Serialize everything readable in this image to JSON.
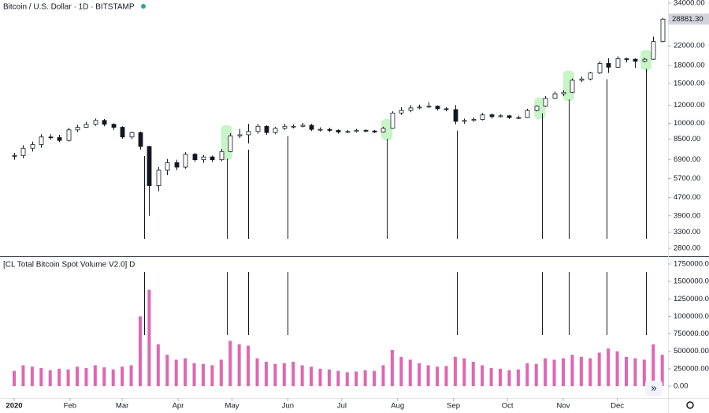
{
  "chart_data": [
    {
      "type": "candlestick",
      "title": "Bitcoin / U.S. Dollar · 1D · BITSTAMP",
      "log_scale": true,
      "up_color": "#ffffff",
      "down_color": "#131722",
      "x": [
        0,
        5,
        10,
        15,
        20,
        25,
        30,
        35,
        40,
        45,
        50,
        55,
        60,
        65,
        70,
        75,
        80,
        85,
        90,
        95,
        100,
        105,
        110,
        115,
        120,
        125,
        130,
        135,
        140,
        145,
        150,
        155,
        160,
        165,
        170,
        175,
        180,
        185,
        190,
        195,
        200,
        205,
        210,
        215,
        220,
        225,
        230,
        235,
        240,
        245,
        250,
        255,
        260,
        265,
        270,
        275,
        280,
        285,
        290,
        295,
        300,
        305,
        310,
        315,
        320,
        325,
        330,
        335,
        340,
        345,
        350,
        355,
        360
      ],
      "open": [
        7150,
        7200,
        7750,
        8050,
        8700,
        8650,
        8400,
        9350,
        9600,
        9900,
        10300,
        9900,
        9600,
        8700,
        9100,
        7900,
        5300,
        6200,
        6700,
        6400,
        7300,
        6900,
        7100,
        6900,
        7500,
        8800,
        8900,
        9200,
        9700,
        9100,
        9500,
        9700,
        9700,
        9800,
        9400,
        9400,
        9300,
        9150,
        9200,
        9300,
        9250,
        9150,
        9500,
        11100,
        11400,
        11700,
        11800,
        11900,
        11600,
        11500,
        10200,
        10300,
        10400,
        10900,
        10700,
        10800,
        10600,
        10600,
        11400,
        11900,
        12900,
        13500,
        13700,
        15500,
        15700,
        16700,
        18400,
        17700,
        19300,
        19200,
        18800,
        19200,
        23000
      ],
      "high": [
        7400,
        8000,
        8300,
        8950,
        8950,
        8900,
        9550,
        9850,
        10150,
        10500,
        10450,
        10000,
        9700,
        9200,
        9200,
        7950,
        6400,
        6950,
        6900,
        7450,
        7400,
        7250,
        7200,
        7700,
        9050,
        9450,
        9950,
        9950,
        9800,
        9650,
        9950,
        9900,
        10050,
        9950,
        9600,
        9550,
        9400,
        9350,
        9450,
        9400,
        9350,
        9650,
        11300,
        11800,
        12050,
        12100,
        12400,
        12000,
        11800,
        12050,
        10500,
        10600,
        11100,
        11050,
        10950,
        10900,
        10800,
        11600,
        12000,
        13200,
        13850,
        14000,
        15800,
        16100,
        16900,
        18800,
        19400,
        19800,
        19500,
        19400,
        19500,
        24200,
        29300
      ],
      "low": [
        6900,
        7000,
        7500,
        7800,
        8450,
        8250,
        8300,
        9150,
        9550,
        9750,
        9700,
        9350,
        8550,
        8500,
        7650,
        3900,
        5000,
        5900,
        6200,
        6300,
        6750,
        6700,
        6750,
        6800,
        7450,
        8600,
        8150,
        9000,
        8900,
        8950,
        9350,
        9500,
        9600,
        9250,
        9200,
        9150,
        9000,
        9050,
        9100,
        9150,
        9050,
        9100,
        9450,
        10900,
        11200,
        11550,
        11700,
        11400,
        11300,
        9900,
        9950,
        10150,
        10300,
        10500,
        10600,
        10450,
        10450,
        10550,
        11300,
        11800,
        12800,
        13200,
        13600,
        15200,
        15500,
        16500,
        16700,
        17600,
        18600,
        17600,
        18600,
        19100,
        22800
      ],
      "close": [
        7200,
        7750,
        8050,
        8700,
        8650,
        8400,
        9350,
        9600,
        9900,
        10300,
        9900,
        9600,
        8700,
        9100,
        7900,
        5300,
        6200,
        6700,
        6400,
        7300,
        6900,
        7100,
        6900,
        7500,
        8800,
        8900,
        9200,
        9700,
        9100,
        9500,
        9700,
        9700,
        9800,
        9400,
        9400,
        9300,
        9150,
        9200,
        9300,
        9250,
        9150,
        9500,
        11100,
        11400,
        11700,
        11800,
        11900,
        11600,
        11500,
        10200,
        10300,
        10400,
        10900,
        10700,
        10800,
        10600,
        10600,
        11400,
        11900,
        12900,
        13500,
        13700,
        15500,
        15700,
        16700,
        18400,
        17700,
        19300,
        19200,
        18800,
        19200,
        23000,
        28881.3
      ],
      "last_label": "28881.30",
      "signals": [
        72,
        118,
        130,
        152,
        207,
        246,
        293,
        308,
        329,
        351
      ],
      "highlights": [
        118,
        207,
        292,
        308,
        351
      ],
      "highlight_color": "#c8f5c8",
      "xlim": [
        -7.88,
        363.2
      ],
      "ylim": [
        2585,
        35100
      ],
      "yticks": [
        {
          "value": 34000,
          "label": "34000.00"
        },
        {
          "value": 28000,
          "label": "28000.00"
        },
        {
          "value": 22000,
          "label": "22000.00"
        },
        {
          "value": 18000,
          "label": "18000.00"
        },
        {
          "value": 15000,
          "label": "15000.00"
        },
        {
          "value": 12000,
          "label": "12000.00"
        },
        {
          "value": 10000,
          "label": "10000.00"
        },
        {
          "value": 8500,
          "label": "8500.00"
        },
        {
          "value": 6900,
          "label": "6900.00"
        },
        {
          "value": 5700,
          "label": "5700.00"
        },
        {
          "value": 4700,
          "label": "4700.00"
        },
        {
          "value": 3900,
          "label": "3900.00"
        },
        {
          "value": 3300,
          "label": "3300.00"
        },
        {
          "value": 2800,
          "label": "2800.00"
        }
      ]
    },
    {
      "type": "bar",
      "title": "[CL Total Bitcoin Spot Volume V2.0] D",
      "color": "#e066b3",
      "x": [
        0,
        5,
        10,
        15,
        20,
        25,
        30,
        35,
        40,
        45,
        50,
        55,
        60,
        65,
        70,
        75,
        80,
        85,
        90,
        95,
        100,
        105,
        110,
        115,
        120,
        125,
        130,
        135,
        140,
        145,
        150,
        155,
        160,
        165,
        170,
        175,
        180,
        185,
        190,
        195,
        200,
        205,
        210,
        215,
        220,
        225,
        230,
        235,
        240,
        245,
        250,
        255,
        260,
        265,
        270,
        275,
        280,
        285,
        290,
        295,
        300,
        305,
        310,
        315,
        320,
        325,
        330,
        335,
        340,
        345,
        350,
        355,
        360
      ],
      "values": [
        220000,
        300000,
        280000,
        260000,
        230000,
        250000,
        240000,
        280000,
        260000,
        300000,
        270000,
        240000,
        280000,
        300000,
        1000000,
        1380000,
        600000,
        450000,
        380000,
        400000,
        330000,
        320000,
        300000,
        380000,
        650000,
        600000,
        580000,
        400000,
        350000,
        320000,
        330000,
        350000,
        300000,
        280000,
        250000,
        240000,
        220000,
        200000,
        210000,
        230000,
        220000,
        300000,
        520000,
        420000,
        380000,
        330000,
        300000,
        280000,
        290000,
        420000,
        400000,
        350000,
        300000,
        260000,
        250000,
        230000,
        240000,
        330000,
        320000,
        400000,
        380000,
        400000,
        450000,
        420000,
        400000,
        480000,
        540000,
        500000,
        420000,
        400000,
        380000,
        600000,
        450000
      ],
      "signals": [
        72,
        118,
        130,
        152,
        246,
        293,
        308,
        329,
        351
      ],
      "xlim": [
        -7.88,
        363.2
      ],
      "ylim": [
        -169000,
        1851000
      ],
      "yticks": [
        {
          "value": 1750000,
          "label": "1750000.00"
        },
        {
          "value": 1500000,
          "label": "1500000.00"
        },
        {
          "value": 1250000,
          "label": "1250000.00"
        },
        {
          "value": 1000000,
          "label": "1000000.00"
        },
        {
          "value": 750000,
          "label": "750000.00"
        },
        {
          "value": 500000,
          "label": "500000.00"
        },
        {
          "value": 250000,
          "label": "250000.00"
        },
        {
          "value": 0,
          "label": "0.00"
        }
      ],
      "xticks": [
        {
          "value": 0,
          "label": "2020"
        },
        {
          "value": 31,
          "label": "Feb"
        },
        {
          "value": 60,
          "label": "Mar"
        },
        {
          "value": 91,
          "label": "Apr"
        },
        {
          "value": 121,
          "label": "May"
        },
        {
          "value": 152,
          "label": "Jun"
        },
        {
          "value": 182,
          "label": "Jul"
        },
        {
          "value": 213,
          "label": "Aug"
        },
        {
          "value": 244,
          "label": "Sep"
        },
        {
          "value": 274,
          "label": "Oct"
        },
        {
          "value": 305,
          "label": "Nov"
        },
        {
          "value": 335,
          "label": "Dec"
        }
      ]
    }
  ]
}
